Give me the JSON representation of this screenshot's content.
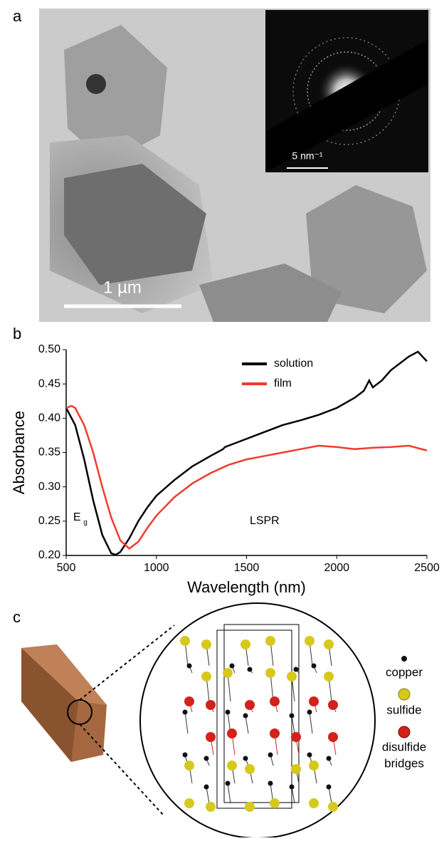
{
  "panels": {
    "a": {
      "label": "a",
      "scale_bar": "1 µm",
      "inset_scale_bar": "5 nm⁻¹"
    },
    "b": {
      "label": "b"
    },
    "c": {
      "label": "c",
      "legend": [
        "copper",
        "sulfide",
        "disulfide",
        "bridges"
      ]
    }
  },
  "chart_data": {
    "type": "line",
    "xlabel": "Wavelength (nm)",
    "ylabel": "Absorbance",
    "xlim": [
      500,
      2500
    ],
    "xticks": [
      500,
      1000,
      1500,
      2000,
      2500
    ],
    "ylim": [
      0.2,
      0.5
    ],
    "yticks": [
      {
        "value": 0.2,
        "label": "0.20"
      },
      0.25,
      {
        "value": 0.3,
        "label": "0.30"
      },
      0.35,
      {
        "value": 0.4,
        "label": "0.40"
      },
      0.45,
      {
        "value": 0.5,
        "label": "0.50"
      }
    ],
    "legend": "upper center",
    "annotations": [
      {
        "text": "E",
        "sub": "g",
        "x": 560,
        "y": 0.255
      },
      {
        "text": "LSPR",
        "x": 1600,
        "y": 0.25
      }
    ],
    "series": [
      {
        "name": "solution",
        "color": "#000000",
        "x": [
          500,
          550,
          600,
          650,
          700,
          750,
          775,
          800,
          850,
          900,
          950,
          1000,
          1100,
          1200,
          1300,
          1370,
          1380,
          1400,
          1500,
          1600,
          1700,
          1800,
          1900,
          2000,
          2100,
          2150,
          2180,
          2200,
          2250,
          2300,
          2400,
          2450,
          2500
        ],
        "values": [
          0.415,
          0.39,
          0.34,
          0.28,
          0.23,
          0.203,
          0.201,
          0.205,
          0.225,
          0.25,
          0.27,
          0.287,
          0.31,
          0.33,
          0.345,
          0.355,
          0.358,
          0.36,
          0.37,
          0.38,
          0.39,
          0.397,
          0.405,
          0.415,
          0.43,
          0.44,
          0.455,
          0.445,
          0.455,
          0.47,
          0.49,
          0.497,
          0.483
        ]
      },
      {
        "name": "film",
        "color": "#f03c2e",
        "x": [
          500,
          530,
          550,
          600,
          650,
          700,
          750,
          800,
          850,
          900,
          950,
          1000,
          1100,
          1200,
          1300,
          1400,
          1500,
          1600,
          1700,
          1800,
          1900,
          2000,
          2100,
          2200,
          2300,
          2400,
          2500
        ],
        "values": [
          0.415,
          0.418,
          0.415,
          0.39,
          0.35,
          0.3,
          0.255,
          0.222,
          0.21,
          0.22,
          0.24,
          0.258,
          0.285,
          0.305,
          0.32,
          0.332,
          0.34,
          0.345,
          0.35,
          0.355,
          0.36,
          0.358,
          0.355,
          0.357,
          0.358,
          0.36,
          0.353
        ]
      }
    ]
  }
}
